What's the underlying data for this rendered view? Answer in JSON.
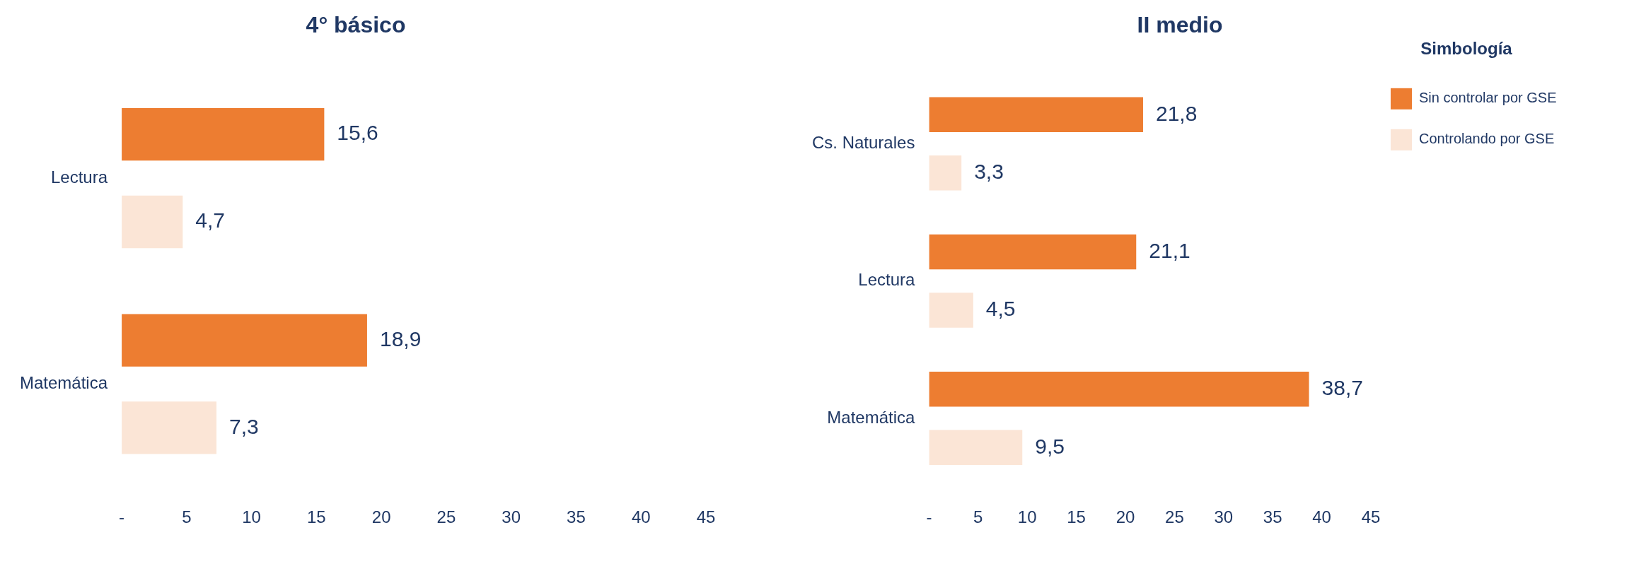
{
  "chart_data": [
    {
      "type": "bar",
      "orientation": "horizontal",
      "title": "4° básico",
      "categories": [
        "Lectura",
        "Matemática"
      ],
      "series": [
        {
          "color": "#ed7d31",
          "values": [
            15.6,
            18.9
          ],
          "value_labels": [
            "15,6",
            "18,9"
          ]
        },
        {
          "color": "#fbe5d6",
          "values": [
            4.7,
            7.3
          ],
          "value_labels": [
            "4,7",
            "7,3"
          ]
        }
      ],
      "xlim": [
        0,
        45
      ],
      "xticks": [
        {
          "value": 0,
          "label": "-"
        },
        5,
        10,
        15,
        20,
        25,
        30,
        35,
        40,
        45
      ],
      "grid": false,
      "legend": false
    },
    {
      "type": "bar",
      "orientation": "horizontal",
      "title": "II medio",
      "categories": [
        "Cs. Naturales",
        "Lectura",
        "Matemática"
      ],
      "series": [
        {
          "name": "Sin controlar por GSE",
          "color": "#ed7d31",
          "values": [
            21.8,
            21.1,
            38.7
          ],
          "value_labels": [
            "21,8",
            "21,1",
            "38,7"
          ]
        },
        {
          "name": "Controlando por GSE",
          "color": "#fbe5d6",
          "values": [
            3.3,
            4.5,
            9.5
          ],
          "value_labels": [
            "3,3",
            "4,5",
            "9,5"
          ]
        }
      ],
      "legend_title": "Simbología",
      "xlim": [
        0,
        45
      ],
      "xticks": [
        {
          "value": 0,
          "label": "-"
        },
        5,
        10,
        15,
        20,
        25,
        30,
        35,
        40,
        45
      ],
      "grid": false,
      "legend": "right"
    }
  ]
}
